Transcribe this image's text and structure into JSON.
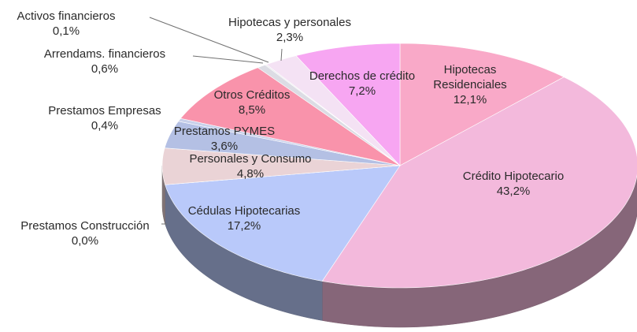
{
  "chart_data": {
    "type": "pie",
    "categories": [
      "Hipotecas Residenciales",
      "Crédito Hipotecario",
      "Cédulas Hipotecarias",
      "Prestamos Construcción",
      "Personales y Consumo",
      "Prestamos PYMES",
      "Prestamos Empresas",
      "Otros Créditos",
      "Arrendams. financieros",
      "Activos financieros",
      "Hipotecas y personales",
      "Derechos de crédito"
    ],
    "values": [
      12.1,
      43.2,
      17.2,
      0.0,
      4.8,
      3.6,
      0.4,
      8.5,
      0.6,
      0.1,
      2.3,
      7.2
    ],
    "value_labels": [
      "12,1%",
      "43,2%",
      "17,2%",
      "0,0%",
      "4,8%",
      "3,6%",
      "0,4%",
      "8,5%",
      "0,6%",
      "0,1%",
      "2,3%",
      "7,2%"
    ],
    "colors": [
      "#f9a9c8",
      "#f3b9dc",
      "#b9c9fa",
      "#c8c8e8",
      "#ead3d6",
      "#b4c0e4",
      "#c8d0ea",
      "#f993ab",
      "#dcdce4",
      "#e4e4e8",
      "#f4e2f4",
      "#f7a6f2"
    ]
  }
}
